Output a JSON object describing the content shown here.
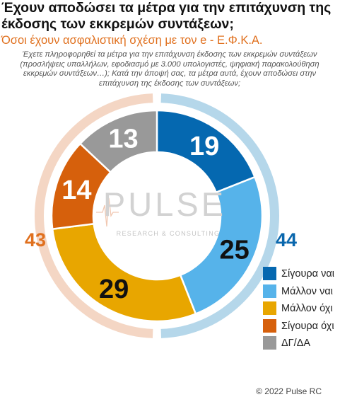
{
  "title": "Έχουν αποδώσει τα μέτρα για την επιτάχυνση της έκδοσης των εκκρεμών συντάξεων;",
  "subtitle": "Όσοι έχουν ασφαλιστική σχέση με τον e - Ε.Φ.Κ.Α.",
  "question": "Έχετε πληροφορηθεί τα μέτρα για την επιτάχυνση έκδοσης των εκκρεμών συντάξεων (προσλήψεις υπαλλήλων, εφοδιασμό με 3.000 υπολογιστές, ψηφιακή παρακολούθηση εκκρεμών συντάξεων…); Κατά την άποψή σας, τα μέτρα αυτά, έχουν αποδώσει στην επιτάχυνση της έκδοσης των συντάξεων;",
  "logo": {
    "name": "PULSE",
    "tagline": "RESEARCH & CONSULTING"
  },
  "copyright": "© 2022 Pulse RC",
  "chart_data": {
    "type": "donut",
    "categories": [
      "Σίγουρα ναι",
      "Μάλλον ναι",
      "Μάλλον όχι",
      "Σίγουρα όχι",
      "ΔΓ/ΔΑ"
    ],
    "values": [
      19,
      25,
      29,
      14,
      13
    ],
    "colors": [
      "#0568b0",
      "#56b3ea",
      "#e8a600",
      "#d6600c",
      "#999999"
    ],
    "label_colors": [
      "#ffffff",
      "#111111",
      "#111111",
      "#ffffff",
      "#ffffff"
    ],
    "groups": [
      {
        "label": "44",
        "value": 44,
        "members": [
          "Σίγουρα ναι",
          "Μάλλον ναι"
        ],
        "color": "#b5d7ea",
        "label_color": "#0a67ad"
      },
      {
        "label": "43",
        "value": 43,
        "members": [
          "Μάλλον όχι",
          "Σίγουρα όχι"
        ],
        "color": "#f4d6c4",
        "label_color": "#e0701e"
      }
    ],
    "legend_position": "right"
  }
}
